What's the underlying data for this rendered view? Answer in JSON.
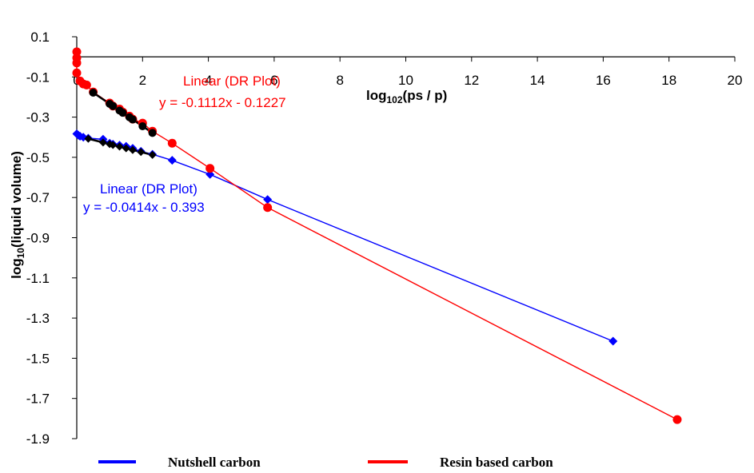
{
  "chart_data": {
    "type": "scatter",
    "title": "",
    "xlabel": {
      "prefix": "log",
      "sub": "10",
      "sup": "2",
      "suffix": "(ps / p)"
    },
    "ylabel": {
      "prefix": "log",
      "sub": "10",
      "suffix": "(liquid volume)"
    },
    "xlim": [
      0,
      20
    ],
    "ylim": [
      -1.9,
      0.1
    ],
    "x_ticks": [
      0,
      2,
      4,
      6,
      8,
      10,
      12,
      14,
      16,
      18,
      20
    ],
    "y_ticks": [
      0.1,
      -0.1,
      -0.3,
      -0.5,
      -0.7,
      -0.9,
      -1.1,
      -1.3,
      -1.5,
      -1.7,
      -1.9
    ],
    "x_tick_labels": [
      "0",
      "2",
      "4",
      "6",
      "8",
      "10",
      "12",
      "14",
      "16",
      "18",
      "20"
    ],
    "y_tick_labels": [
      "0.1",
      "-0.1",
      "-0.3",
      "-0.5",
      "-0.7",
      "-0.9",
      "-1.1",
      "-1.3",
      "-1.5",
      "-1.7",
      "-1.9"
    ],
    "grid": false,
    "legend_position": "bottom",
    "series": [
      {
        "name": "Nutshell carbon",
        "color": "#0000FF",
        "marker": "diamond",
        "x": [
          0.0,
          0.05,
          0.1,
          0.2,
          0.35,
          0.8,
          1.0,
          1.1,
          1.3,
          1.5,
          1.7,
          1.95,
          2.3,
          2.9,
          4.05,
          5.8,
          16.3
        ],
        "y": [
          -0.383,
          -0.39,
          -0.395,
          -0.4,
          -0.405,
          -0.41,
          -0.43,
          -0.435,
          -0.44,
          -0.445,
          -0.455,
          -0.47,
          -0.485,
          -0.515,
          -0.585,
          -0.71,
          -1.415
        ]
      },
      {
        "name": "Resin based carbon",
        "color": "#FF0000",
        "marker": "circle",
        "x": [
          0.0,
          0.0,
          0.0,
          0.0,
          0.1,
          0.2,
          0.3,
          0.5,
          1.0,
          1.1,
          1.3,
          1.4,
          1.6,
          1.7,
          2.0,
          2.3,
          2.9,
          4.05,
          5.8,
          18.25
        ],
        "y": [
          0.025,
          -0.005,
          -0.03,
          -0.08,
          -0.12,
          -0.135,
          -0.14,
          -0.175,
          -0.23,
          -0.245,
          -0.26,
          -0.275,
          -0.295,
          -0.31,
          -0.33,
          -0.37,
          -0.43,
          -0.555,
          -0.75,
          -1.805
        ]
      }
    ],
    "fits": [
      {
        "label": "Linear (DR Plot)",
        "equation": "y = -0.1112x - 0.1227",
        "color": "#FF0000",
        "slope": -0.1112,
        "intercept": -0.1227,
        "x_range": [
          0.5,
          2.3
        ],
        "points_x": [
          0.5,
          1.0,
          1.1,
          1.3,
          1.4,
          1.6,
          1.7,
          2.0,
          2.3
        ]
      },
      {
        "label": "Linear (DR Plot)",
        "equation": "y = -0.0414x - 0.393",
        "color": "#0000FF",
        "slope": -0.0414,
        "intercept": -0.393,
        "x_range": [
          0.35,
          2.3
        ],
        "points_x": [
          0.35,
          0.8,
          1.0,
          1.1,
          1.3,
          1.5,
          1.7,
          1.95,
          2.3
        ]
      }
    ]
  }
}
